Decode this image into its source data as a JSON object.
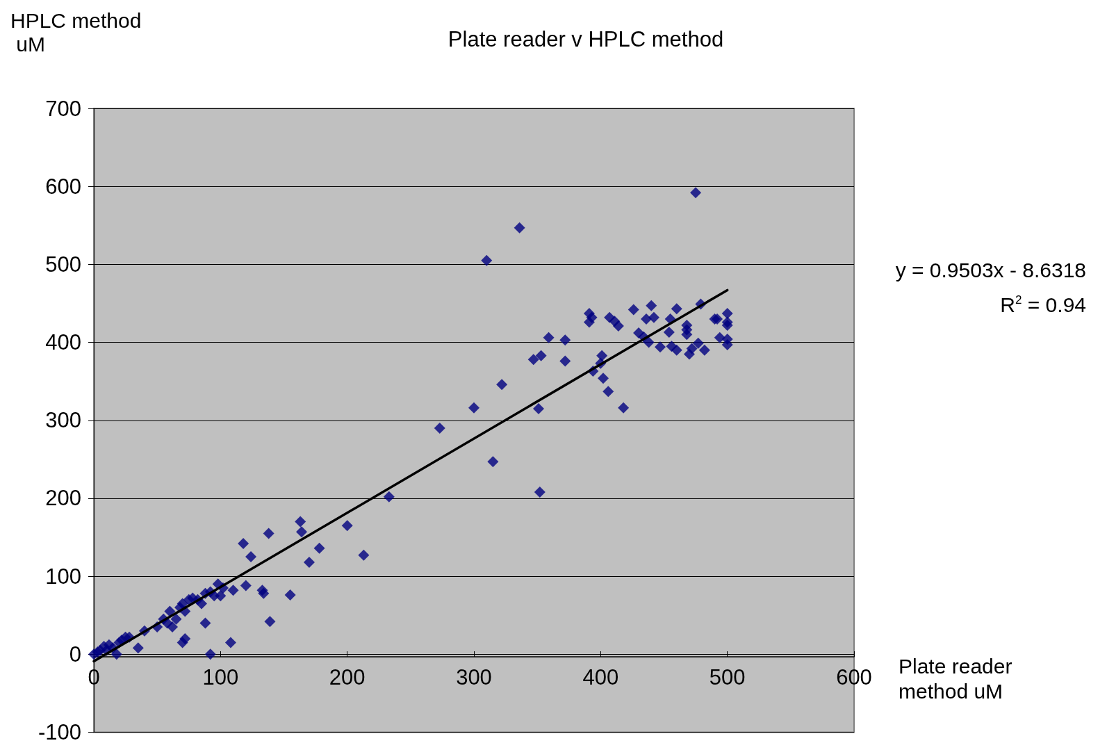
{
  "chart_data": {
    "type": "scatter",
    "title": "Plate reader v HPLC method",
    "xlabel": "Plate reader method uM",
    "ylabel": "HPLC method uM",
    "xlim": [
      0,
      600
    ],
    "xticks": [
      0,
      100,
      200,
      300,
      400,
      500,
      600
    ],
    "ylim": [
      -100,
      700
    ],
    "yticks": [
      -100,
      0,
      100,
      200,
      300,
      400,
      500,
      600,
      700
    ],
    "grid": "y",
    "marker": "diamond",
    "annotations": [
      "y = 0.9503x - 8.6318",
      "R$^{2}$ = 0.94"
    ],
    "series": [
      {
        "type": "scatter",
        "color": "#000080",
        "x": [
          0,
          3,
          5,
          8,
          10,
          12,
          15,
          18,
          20,
          22,
          25,
          28,
          35,
          40,
          50,
          55,
          58,
          60,
          62,
          65,
          68,
          70,
          72,
          70,
          72,
          75,
          78,
          82,
          85,
          88,
          92,
          88,
          95,
          98,
          100,
          102,
          92,
          110,
          108,
          118,
          120,
          124,
          133,
          134,
          138,
          139,
          155,
          163,
          164,
          170,
          178,
          200,
          213,
          233,
          273,
          300,
          310,
          315,
          322,
          336,
          347,
          351,
          352,
          353,
          359,
          372,
          372,
          391,
          391,
          393,
          394,
          400,
          401,
          402,
          406,
          407,
          411,
          414,
          418,
          426,
          430,
          434,
          436,
          438,
          440,
          442,
          447,
          454,
          455,
          456,
          460,
          460,
          468,
          468,
          468,
          470,
          472,
          475,
          477,
          479,
          482,
          490,
          492,
          494,
          500,
          500,
          500,
          500,
          500
        ],
        "values": [
          0,
          3,
          5,
          10,
          5,
          12,
          8,
          0,
          15,
          18,
          22,
          22,
          8,
          30,
          35,
          45,
          40,
          55,
          35,
          45,
          60,
          15,
          20,
          65,
          55,
          70,
          72,
          70,
          65,
          78,
          80,
          40,
          75,
          90,
          75,
          85,
          0,
          82,
          15,
          142,
          88,
          125,
          82,
          78,
          155,
          42,
          76,
          170,
          157,
          118,
          136,
          165,
          127,
          202,
          290,
          316,
          505,
          247,
          346,
          547,
          378,
          315,
          208,
          383,
          406,
          403,
          376,
          437,
          426,
          432,
          363,
          373,
          383,
          354,
          337,
          432,
          427,
          421,
          316,
          442,
          412,
          407,
          430,
          400,
          447,
          432,
          394,
          413,
          430,
          395,
          390,
          443,
          422,
          410,
          416,
          385,
          392,
          592,
          399,
          449,
          390,
          430,
          430,
          406,
          437,
          426,
          422,
          404,
          397
        ]
      },
      {
        "type": "line",
        "color": "#000000",
        "marker": "none",
        "x": [
          0,
          500
        ],
        "values": [
          -9,
          467
        ]
      }
    ]
  }
}
